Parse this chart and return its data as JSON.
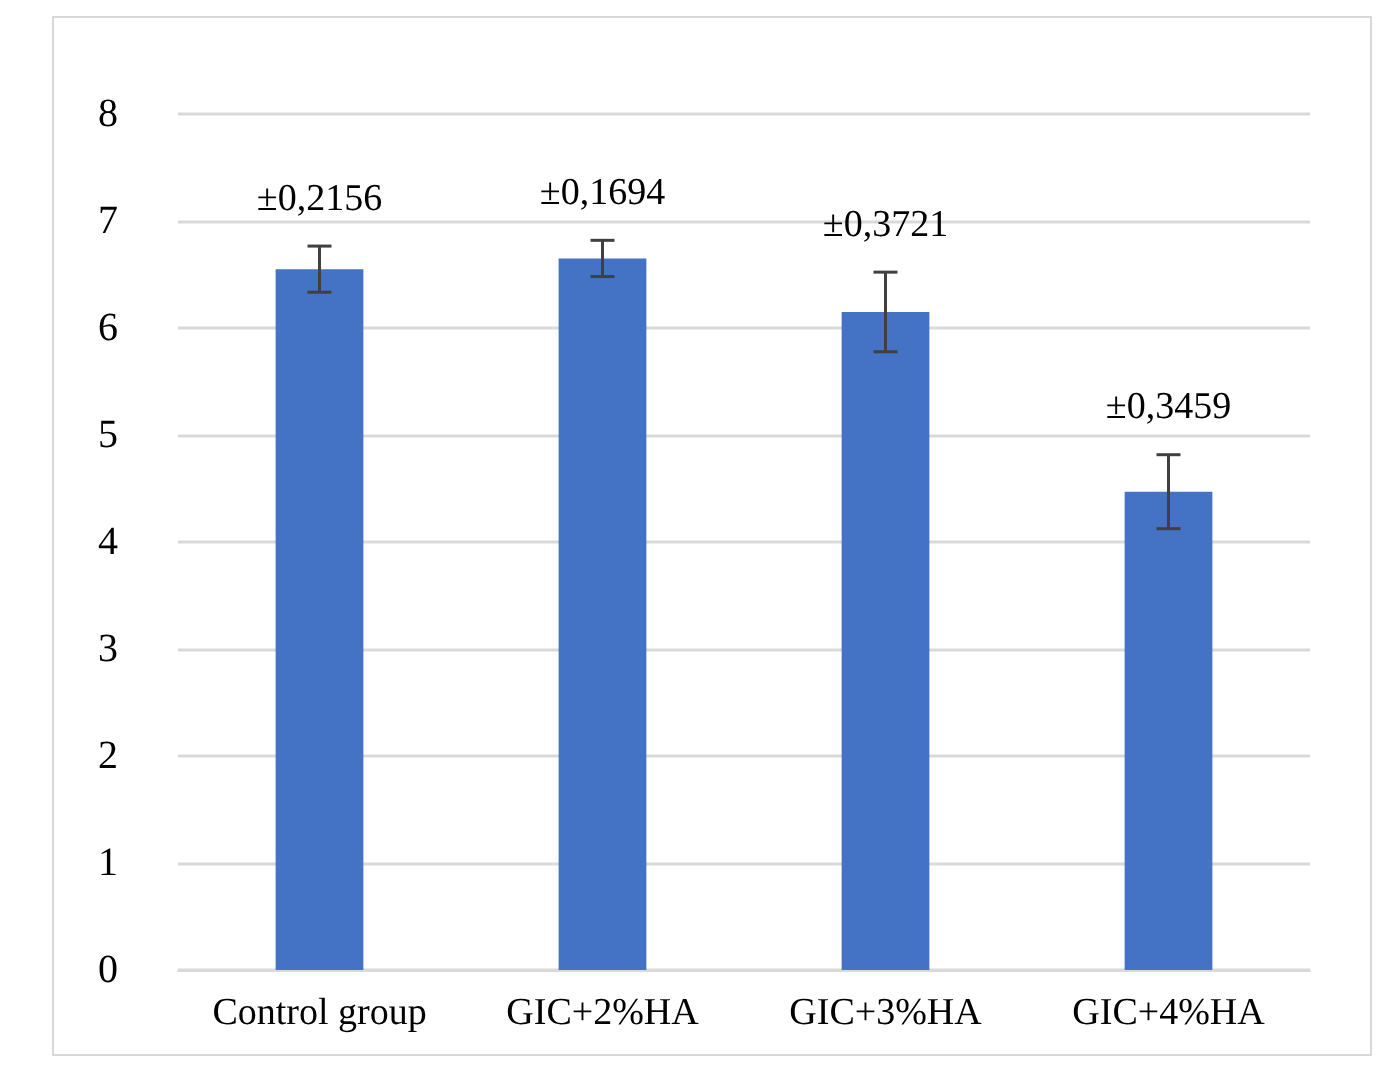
{
  "chart_data": {
    "type": "bar",
    "categories": [
      "Control group",
      "GIC+2%HA",
      "GIC+3%HA",
      "GIC+4%HA"
    ],
    "values": [
      6.55,
      6.65,
      6.15,
      4.47
    ],
    "errors": [
      0.2156,
      0.1694,
      0.3721,
      0.3459
    ],
    "color": "#4472c4",
    "annotations": [
      {
        "text": "±0,2156",
        "x": "Control group",
        "y": 6.77
      },
      {
        "text": "±0,1694",
        "x": "GIC+2%HA",
        "y": 6.82
      },
      {
        "text": "±0,3721",
        "x": "GIC+3%HA",
        "y": 6.52
      },
      {
        "text": "±0,3459",
        "x": "GIC+4%HA",
        "y": 4.82
      }
    ],
    "ylim": [
      0,
      8
    ],
    "yticks": [
      0,
      1,
      2,
      3,
      4,
      5,
      6,
      7,
      8
    ],
    "grid": "y"
  }
}
